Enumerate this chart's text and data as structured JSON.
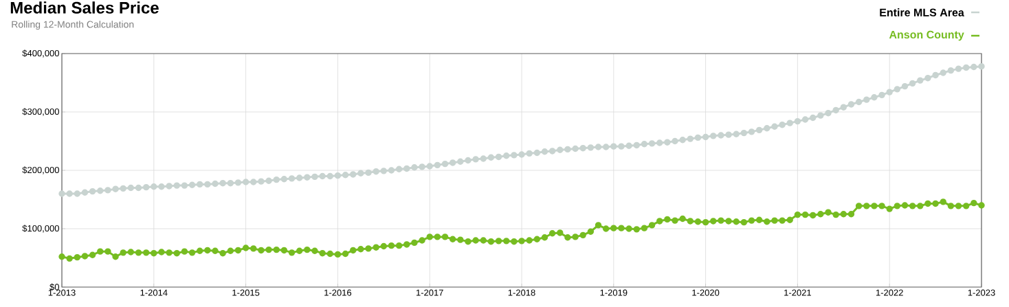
{
  "chart_data": {
    "type": "line",
    "title": "Median Sales Price",
    "subtitle": "Rolling 12-Month Calculation",
    "x": [
      "2013-01",
      "2013-02",
      "2013-03",
      "2013-04",
      "2013-05",
      "2013-06",
      "2013-07",
      "2013-08",
      "2013-09",
      "2013-10",
      "2013-11",
      "2013-12",
      "2014-01",
      "2014-02",
      "2014-03",
      "2014-04",
      "2014-05",
      "2014-06",
      "2014-07",
      "2014-08",
      "2014-09",
      "2014-10",
      "2014-11",
      "2014-12",
      "2015-01",
      "2015-02",
      "2015-03",
      "2015-04",
      "2015-05",
      "2015-06",
      "2015-07",
      "2015-08",
      "2015-09",
      "2015-10",
      "2015-11",
      "2015-12",
      "2016-01",
      "2016-02",
      "2016-03",
      "2016-04",
      "2016-05",
      "2016-06",
      "2016-07",
      "2016-08",
      "2016-09",
      "2016-10",
      "2016-11",
      "2016-12",
      "2017-01",
      "2017-02",
      "2017-03",
      "2017-04",
      "2017-05",
      "2017-06",
      "2017-07",
      "2017-08",
      "2017-09",
      "2017-10",
      "2017-11",
      "2017-12",
      "2018-01",
      "2018-02",
      "2018-03",
      "2018-04",
      "2018-05",
      "2018-06",
      "2018-07",
      "2018-08",
      "2018-09",
      "2018-10",
      "2018-11",
      "2018-12",
      "2019-01",
      "2019-02",
      "2019-03",
      "2019-04",
      "2019-05",
      "2019-06",
      "2019-07",
      "2019-08",
      "2019-09",
      "2019-10",
      "2019-11",
      "2019-12",
      "2020-01",
      "2020-02",
      "2020-03",
      "2020-04",
      "2020-05",
      "2020-06",
      "2020-07",
      "2020-08",
      "2020-09",
      "2020-10",
      "2020-11",
      "2020-12",
      "2021-01",
      "2021-02",
      "2021-03",
      "2021-04",
      "2021-05",
      "2021-06",
      "2021-07",
      "2021-08",
      "2021-09",
      "2021-10",
      "2021-11",
      "2021-12",
      "2022-01",
      "2022-02",
      "2022-03",
      "2022-04",
      "2022-05",
      "2022-06",
      "2022-07",
      "2022-08",
      "2022-09",
      "2022-10",
      "2022-11",
      "2022-12",
      "2023-01"
    ],
    "series": [
      {
        "name": "Entire MLS Area",
        "color": "#c8d3d0",
        "values": [
          160000,
          160000,
          160000,
          162000,
          164000,
          165000,
          166000,
          168000,
          169000,
          170000,
          170000,
          171000,
          172000,
          172000,
          173000,
          174000,
          174000,
          175000,
          176000,
          176000,
          177000,
          178000,
          178000,
          179000,
          180000,
          180000,
          181000,
          182000,
          184000,
          185000,
          186000,
          187000,
          188000,
          189000,
          190000,
          190000,
          191000,
          192000,
          193000,
          195000,
          196000,
          198000,
          199000,
          200000,
          202000,
          203000,
          205000,
          206000,
          207000,
          209000,
          211000,
          213000,
          215000,
          217000,
          219000,
          220000,
          222000,
          223000,
          225000,
          226000,
          227000,
          229000,
          230000,
          232000,
          233000,
          235000,
          236000,
          237000,
          238000,
          239000,
          240000,
          240000,
          241000,
          241000,
          242000,
          243000,
          245000,
          246000,
          247000,
          248000,
          250000,
          252000,
          254000,
          256000,
          257000,
          259000,
          260000,
          261000,
          262000,
          264000,
          266000,
          269000,
          272000,
          275000,
          278000,
          281000,
          284000,
          287000,
          290000,
          294000,
          298000,
          303000,
          308000,
          313000,
          317000,
          321000,
          325000,
          329000,
          334000,
          339000,
          344000,
          349000,
          354000,
          358000,
          363000,
          367000,
          371000,
          374000,
          376000,
          377000,
          378000
        ]
      },
      {
        "name": "Anson County",
        "color": "#76bc21",
        "values": [
          52000,
          49000,
          51000,
          53000,
          55000,
          61000,
          61000,
          52000,
          59000,
          60000,
          59000,
          59000,
          58000,
          60000,
          59000,
          58000,
          61000,
          59000,
          62000,
          63000,
          62000,
          58000,
          62000,
          63000,
          67000,
          66000,
          63000,
          64000,
          64000,
          63000,
          59000,
          62000,
          64000,
          62000,
          58000,
          57000,
          56000,
          57000,
          63000,
          65000,
          66000,
          68000,
          70000,
          71000,
          71000,
          73000,
          76000,
          80000,
          86000,
          86000,
          86000,
          82000,
          81000,
          78000,
          80000,
          80000,
          78000,
          79000,
          79000,
          78000,
          79000,
          80000,
          82000,
          85000,
          92000,
          93000,
          85000,
          86000,
          89000,
          95000,
          106000,
          100000,
          101000,
          101000,
          100000,
          99000,
          101000,
          106000,
          113000,
          116000,
          114000,
          117000,
          113000,
          112000,
          111000,
          113000,
          114000,
          113000,
          112000,
          111000,
          114000,
          115000,
          112000,
          114000,
          114000,
          115000,
          124000,
          124000,
          123000,
          125000,
          128000,
          124000,
          125000,
          125000,
          139000,
          139000,
          139000,
          139000,
          134000,
          139000,
          140000,
          139000,
          139000,
          143000,
          143000,
          146000,
          139000,
          139000,
          139000,
          144000,
          140000
        ]
      }
    ],
    "xlim": [
      "2013-01",
      "2023-01"
    ],
    "xticks": [
      {
        "value": "2013-01",
        "label": "1-2013"
      },
      {
        "value": "2014-01",
        "label": "1-2014"
      },
      {
        "value": "2015-01",
        "label": "1-2015"
      },
      {
        "value": "2016-01",
        "label": "1-2016"
      },
      {
        "value": "2017-01",
        "label": "1-2017"
      },
      {
        "value": "2018-01",
        "label": "1-2018"
      },
      {
        "value": "2019-01",
        "label": "1-2019"
      },
      {
        "value": "2020-01",
        "label": "1-2020"
      },
      {
        "value": "2021-01",
        "label": "1-2021"
      },
      {
        "value": "2022-01",
        "label": "1-2022"
      },
      {
        "value": "2023-01",
        "label": "1-2023"
      }
    ],
    "ylim": [
      0,
      400000
    ],
    "yticks": [
      {
        "value": 0,
        "label": "$0"
      },
      {
        "value": 100000,
        "label": "$100,000"
      },
      {
        "value": 200000,
        "label": "$200,000"
      },
      {
        "value": 300000,
        "label": "$300,000"
      },
      {
        "value": 400000,
        "label": "$400,000"
      }
    ],
    "grid": true,
    "legend": "top right",
    "marker": "circle"
  }
}
